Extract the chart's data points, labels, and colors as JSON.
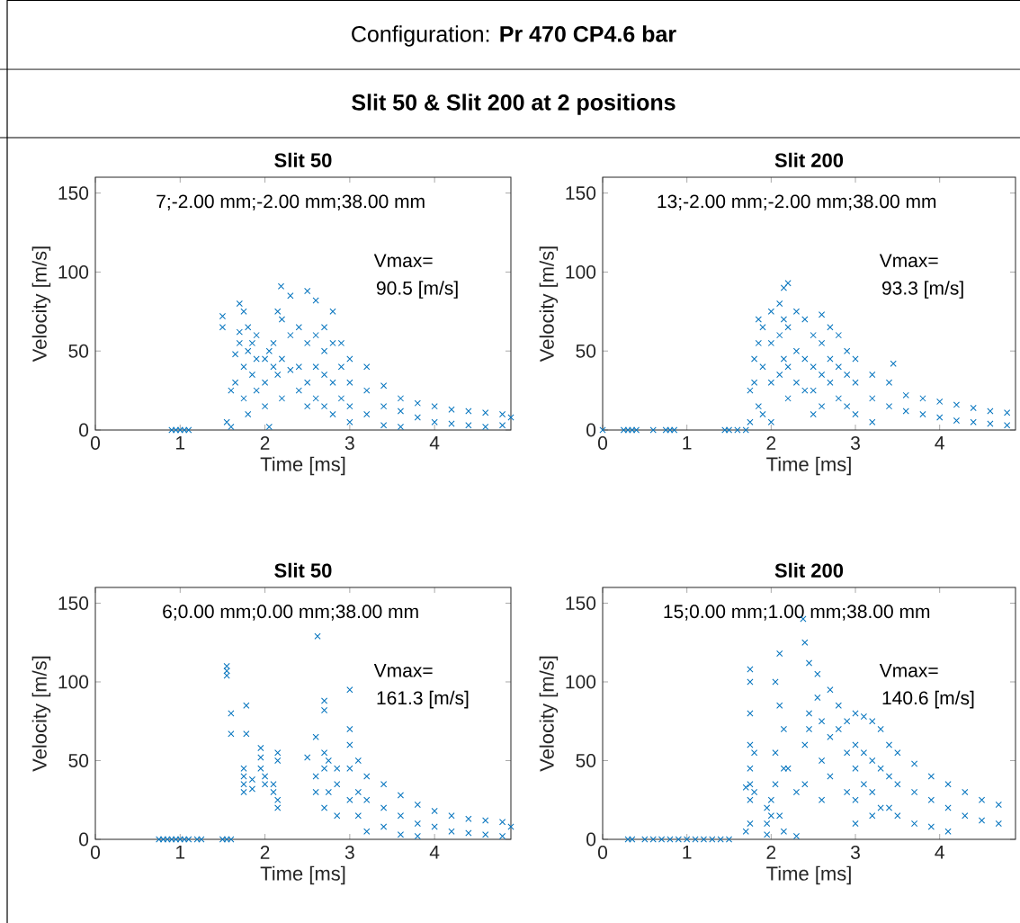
{
  "chart_data": [
    {
      "type": "other",
      "title": "Configuration: **Pr 470 CP4.6 bar**",
      "subtitle": "Slit 50 & Slit 200 at 2 positions"
    },
    {
      "type": "scatter",
      "title": "Slit 50",
      "xlabel": "Time [ms]",
      "ylabel": "Velocity [m/s]",
      "marker": "cross",
      "color": "#0072bd",
      "xlim": [
        0,
        4.9
      ],
      "ylim": [
        0,
        160
      ],
      "xticks": [
        0,
        1,
        2,
        3,
        4
      ],
      "yticks": [
        0,
        50,
        100,
        150
      ],
      "annotations": [
        "7;-2.00 mm;-2.00 mm;38.00 mm",
        "Vmax=",
        "90.5 [m/s]"
      ],
      "x": [
        0.9,
        0.95,
        1.0,
        1.05,
        1.1,
        1.5,
        1.5,
        1.55,
        1.6,
        1.6,
        1.65,
        1.65,
        1.7,
        1.7,
        1.7,
        1.75,
        1.75,
        1.75,
        1.8,
        1.8,
        1.8,
        1.85,
        1.85,
        1.9,
        1.9,
        1.9,
        2.0,
        2.0,
        2.0,
        2.05,
        2.05,
        2.1,
        2.1,
        2.19,
        2.15,
        2.15,
        2.2,
        2.2,
        2.2,
        2.3,
        2.3,
        2.3,
        2.4,
        2.4,
        2.4,
        2.5,
        2.5,
        2.5,
        2.5,
        2.6,
        2.6,
        2.6,
        2.6,
        2.7,
        2.7,
        2.7,
        2.7,
        2.8,
        2.8,
        2.8,
        2.8,
        2.9,
        2.9,
        2.9,
        3.0,
        3.0,
        3.0,
        3.0,
        3.2,
        3.2,
        3.2,
        3.4,
        3.4,
        3.4,
        3.6,
        3.6,
        3.6,
        3.8,
        3.8,
        4.0,
        4.0,
        4.2,
        4.2,
        4.4,
        4.4,
        4.6,
        4.6,
        4.8,
        4.8,
        4.9
      ],
      "values": [
        0,
        0,
        0,
        0,
        0,
        72,
        65,
        5,
        2,
        25,
        30,
        48,
        55,
        62,
        80,
        75,
        40,
        20,
        65,
        50,
        10,
        55,
        35,
        45,
        25,
        60,
        30,
        15,
        45,
        50,
        2,
        40,
        55,
        91,
        75,
        35,
        70,
        45,
        20,
        85,
        60,
        38,
        40,
        65,
        25,
        88,
        55,
        30,
        15,
        82,
        60,
        40,
        20,
        65,
        50,
        35,
        15,
        75,
        55,
        30,
        10,
        55,
        40,
        20,
        45,
        30,
        15,
        5,
        40,
        25,
        10,
        28,
        15,
        3,
        20,
        12,
        2,
        17,
        8,
        15,
        5,
        13,
        4,
        12,
        3,
        11,
        2,
        10,
        3,
        8
      ]
    },
    {
      "type": "scatter",
      "title": "Slit 200",
      "xlabel": "Time [ms]",
      "ylabel": "Velocity [m/s]",
      "marker": "cross",
      "color": "#0072bd",
      "xlim": [
        0,
        4.9
      ],
      "ylim": [
        0,
        160
      ],
      "xticks": [
        0,
        1,
        2,
        3,
        4
      ],
      "yticks": [
        0,
        50,
        100,
        150
      ],
      "annotations": [
        "13;-2.00 mm;-2.00 mm;38.00 mm",
        "Vmax=",
        "93.3 [m/s]"
      ],
      "x": [
        0,
        0.25,
        0.3,
        0.35,
        0.4,
        0.6,
        0.75,
        0.8,
        0.85,
        1.45,
        1.5,
        1.6,
        1.7,
        1.75,
        1.75,
        1.8,
        1.8,
        1.85,
        1.85,
        1.85,
        1.9,
        1.9,
        1.9,
        2.0,
        2.0,
        2.0,
        2.0,
        2.1,
        2.1,
        2.1,
        2.15,
        2.15,
        2.15,
        2.2,
        2.2,
        2.2,
        2.2,
        2.3,
        2.3,
        2.3,
        2.4,
        2.4,
        2.4,
        2.5,
        2.5,
        2.5,
        2.5,
        2.6,
        2.6,
        2.6,
        2.6,
        2.7,
        2.7,
        2.7,
        2.8,
        2.8,
        2.8,
        2.9,
        2.9,
        2.9,
        3.0,
        3.0,
        3.0,
        3.2,
        3.2,
        3.2,
        3.4,
        3.4,
        3.45,
        3.6,
        3.6,
        3.8,
        3.8,
        4.0,
        4.0,
        4.2,
        4.2,
        4.4,
        4.4,
        4.6,
        4.6,
        4.8,
        4.8
      ],
      "values": [
        0,
        0,
        0,
        0,
        0,
        0,
        0,
        0,
        0,
        0,
        0,
        0,
        0,
        5,
        25,
        30,
        45,
        55,
        15,
        70,
        65,
        40,
        10,
        75,
        55,
        30,
        5,
        80,
        60,
        35,
        90,
        70,
        45,
        93,
        65,
        40,
        20,
        75,
        50,
        30,
        70,
        45,
        25,
        60,
        40,
        25,
        10,
        73,
        55,
        35,
        15,
        65,
        45,
        30,
        60,
        40,
        20,
        50,
        35,
        15,
        45,
        30,
        10,
        35,
        20,
        5,
        30,
        15,
        42,
        22,
        12,
        20,
        10,
        18,
        8,
        16,
        6,
        14,
        5,
        12,
        4,
        11,
        3
      ]
    },
    {
      "type": "scatter",
      "title": "Slit 50",
      "xlabel": "Time [ms]",
      "ylabel": "Velocity [m/s]",
      "marker": "cross",
      "color": "#0072bd",
      "xlim": [
        0,
        4.9
      ],
      "ylim": [
        0,
        160
      ],
      "xticks": [
        0,
        1,
        2,
        3,
        4
      ],
      "yticks": [
        0,
        50,
        100,
        150
      ],
      "annotations": [
        "6;0.00 mm;0.00 mm;38.00 mm",
        "Vmax=",
        "161.3 [m/s]"
      ],
      "x": [
        0.75,
        0.8,
        0.85,
        0.9,
        0.95,
        1.0,
        1.05,
        1.1,
        1.2,
        1.25,
        1.5,
        1.55,
        1.6,
        1.55,
        1.55,
        1.55,
        1.6,
        1.6,
        1.75,
        1.75,
        1.75,
        1.75,
        1.78,
        1.78,
        1.85,
        1.85,
        1.95,
        1.95,
        1.95,
        2.0,
        2.0,
        2.1,
        2.1,
        2.15,
        2.15,
        2.15,
        2.15,
        2.5,
        2.62,
        2.6,
        2.6,
        2.6,
        2.7,
        2.7,
        2.7,
        2.7,
        2.7,
        2.75,
        2.75,
        2.85,
        2.85,
        2.85,
        3.0,
        3.0,
        3.0,
        3.0,
        3.0,
        3.1,
        3.1,
        3.1,
        3.2,
        3.2,
        3.2,
        3.4,
        3.4,
        3.4,
        3.6,
        3.6,
        3.6,
        3.8,
        3.8,
        3.8,
        4.0,
        4.0,
        4.2,
        4.2,
        4.4,
        4.4,
        4.6,
        4.6,
        4.8,
        4.8,
        4.9
      ],
      "values": [
        0,
        0,
        0,
        0,
        0,
        0,
        0,
        0,
        0,
        0,
        0,
        0,
        0,
        110,
        107,
        104,
        80,
        67,
        45,
        40,
        35,
        30,
        85,
        67,
        38,
        32,
        58,
        52,
        45,
        40,
        35,
        35,
        30,
        55,
        50,
        25,
        20,
        52,
        129,
        65,
        40,
        30,
        88,
        82,
        55,
        45,
        20,
        50,
        30,
        45,
        35,
        15,
        95,
        70,
        60,
        45,
        25,
        50,
        30,
        15,
        40,
        25,
        5,
        35,
        20,
        8,
        28,
        15,
        3,
        22,
        10,
        2,
        18,
        8,
        15,
        5,
        13,
        4,
        12,
        3,
        11,
        2,
        8
      ]
    },
    {
      "type": "scatter",
      "title": "Slit 200",
      "xlabel": "Time [ms]",
      "ylabel": "Velocity [m/s]",
      "marker": "cross",
      "color": "#0072bd",
      "xlim": [
        0,
        4.9
      ],
      "ylim": [
        0,
        160
      ],
      "xticks": [
        0,
        1,
        2,
        3,
        4
      ],
      "yticks": [
        0,
        50,
        100,
        150
      ],
      "annotations": [
        "15;0.00 mm;1.00 mm;38.00 mm",
        "Vmax=",
        "140.6 [m/s]"
      ],
      "x": [
        0.3,
        0.35,
        0.5,
        0.6,
        0.7,
        0.8,
        0.9,
        1.0,
        1.1,
        1.2,
        1.3,
        1.4,
        1.5,
        1.7,
        1.7,
        1.75,
        1.75,
        1.75,
        1.75,
        1.75,
        1.75,
        1.75,
        1.75,
        1.8,
        1.8,
        1.95,
        1.95,
        1.95,
        2.0,
        2.0,
        2.05,
        2.05,
        2.05,
        2.1,
        2.1,
        2.1,
        2.15,
        2.15,
        2.15,
        2.2,
        2.3,
        2.3,
        2.38,
        2.4,
        2.4,
        2.4,
        2.45,
        2.45,
        2.45,
        2.55,
        2.55,
        2.6,
        2.6,
        2.6,
        2.7,
        2.7,
        2.7,
        2.8,
        2.8,
        2.9,
        2.9,
        2.9,
        3.0,
        3.0,
        3.0,
        3.0,
        3.0,
        3.1,
        3.1,
        3.1,
        3.2,
        3.2,
        3.2,
        3.2,
        3.3,
        3.3,
        3.3,
        3.4,
        3.4,
        3.4,
        3.5,
        3.5,
        3.5,
        3.7,
        3.7,
        3.7,
        3.9,
        3.9,
        3.9,
        4.1,
        4.1,
        4.1,
        4.3,
        4.3,
        4.5,
        4.5,
        4.7,
        4.7
      ],
      "values": [
        0,
        0,
        0,
        0,
        0,
        0,
        0,
        0,
        0,
        0,
        0,
        0,
        0,
        33,
        5,
        108,
        100,
        80,
        60,
        45,
        35,
        25,
        10,
        55,
        30,
        20,
        10,
        3,
        25,
        15,
        100,
        55,
        35,
        118,
        85,
        15,
        70,
        45,
        5,
        45,
        30,
        2,
        140,
        125,
        60,
        35,
        112,
        80,
        70,
        105,
        90,
        75,
        50,
        25,
        95,
        65,
        40,
        85,
        70,
        75,
        55,
        30,
        80,
        60,
        45,
        25,
        10,
        78,
        55,
        35,
        75,
        50,
        30,
        15,
        70,
        45,
        20,
        60,
        40,
        20,
        55,
        35,
        15,
        48,
        30,
        10,
        40,
        25,
        8,
        35,
        20,
        5,
        30,
        15,
        25,
        12,
        22,
        10
      ]
    }
  ]
}
